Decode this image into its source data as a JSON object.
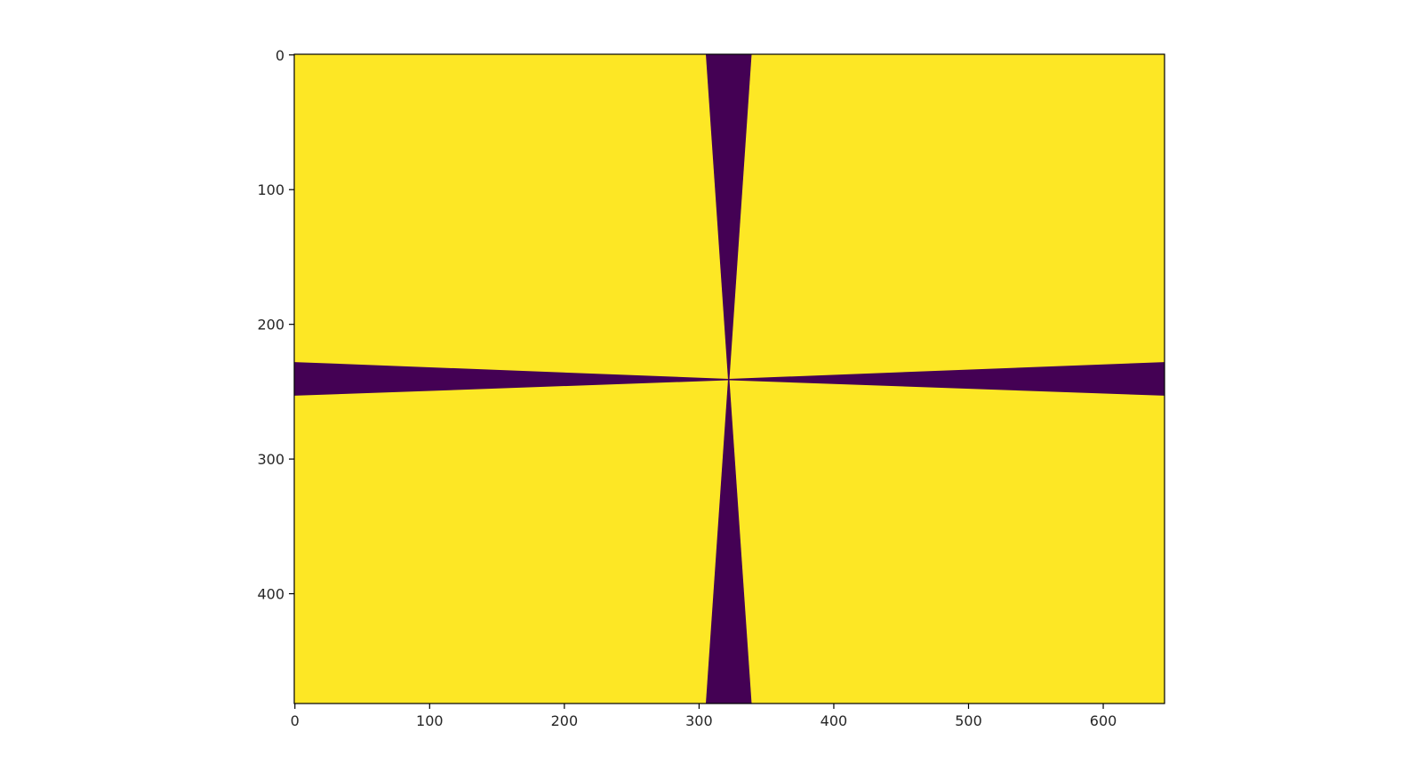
{
  "chart_data": {
    "type": "heatmap",
    "title": "",
    "xlabel": "",
    "ylabel": "",
    "image_width": 646,
    "image_height": 482,
    "xlim": [
      -0.5,
      645.5
    ],
    "ylim": [
      481.5,
      -0.5
    ],
    "y_inverted": true,
    "grid": false,
    "colormap": "viridis",
    "colors": {
      "low": "#440154",
      "high": "#fde725"
    },
    "center": [
      322,
      241
    ],
    "description_regions": [
      {
        "name": "vertical-wedge-top",
        "value": 0,
        "x_range_at_y0": [
          305,
          339
        ]
      },
      {
        "name": "vertical-wedge-bottom",
        "value": 0,
        "x_range_at_y481": [
          305,
          339
        ]
      },
      {
        "name": "horizontal-wedge-left",
        "value": 0,
        "y_range_at_x0": [
          228,
          253
        ]
      },
      {
        "name": "horizontal-wedge-right",
        "value": 0,
        "y_range_at_x645": [
          228,
          253
        ]
      }
    ],
    "xticks": [
      {
        "value": 0,
        "label": "0"
      },
      {
        "value": 100,
        "label": "100"
      },
      {
        "value": 200,
        "label": "200"
      },
      {
        "value": 300,
        "label": "300"
      },
      {
        "value": 400,
        "label": "400"
      },
      {
        "value": 500,
        "label": "500"
      },
      {
        "value": 600,
        "label": "600"
      }
    ],
    "yticks": [
      {
        "value": 0,
        "label": "0"
      },
      {
        "value": 100,
        "label": "100"
      },
      {
        "value": 200,
        "label": "200"
      },
      {
        "value": 300,
        "label": "300"
      },
      {
        "value": 400,
        "label": "400"
      }
    ]
  }
}
